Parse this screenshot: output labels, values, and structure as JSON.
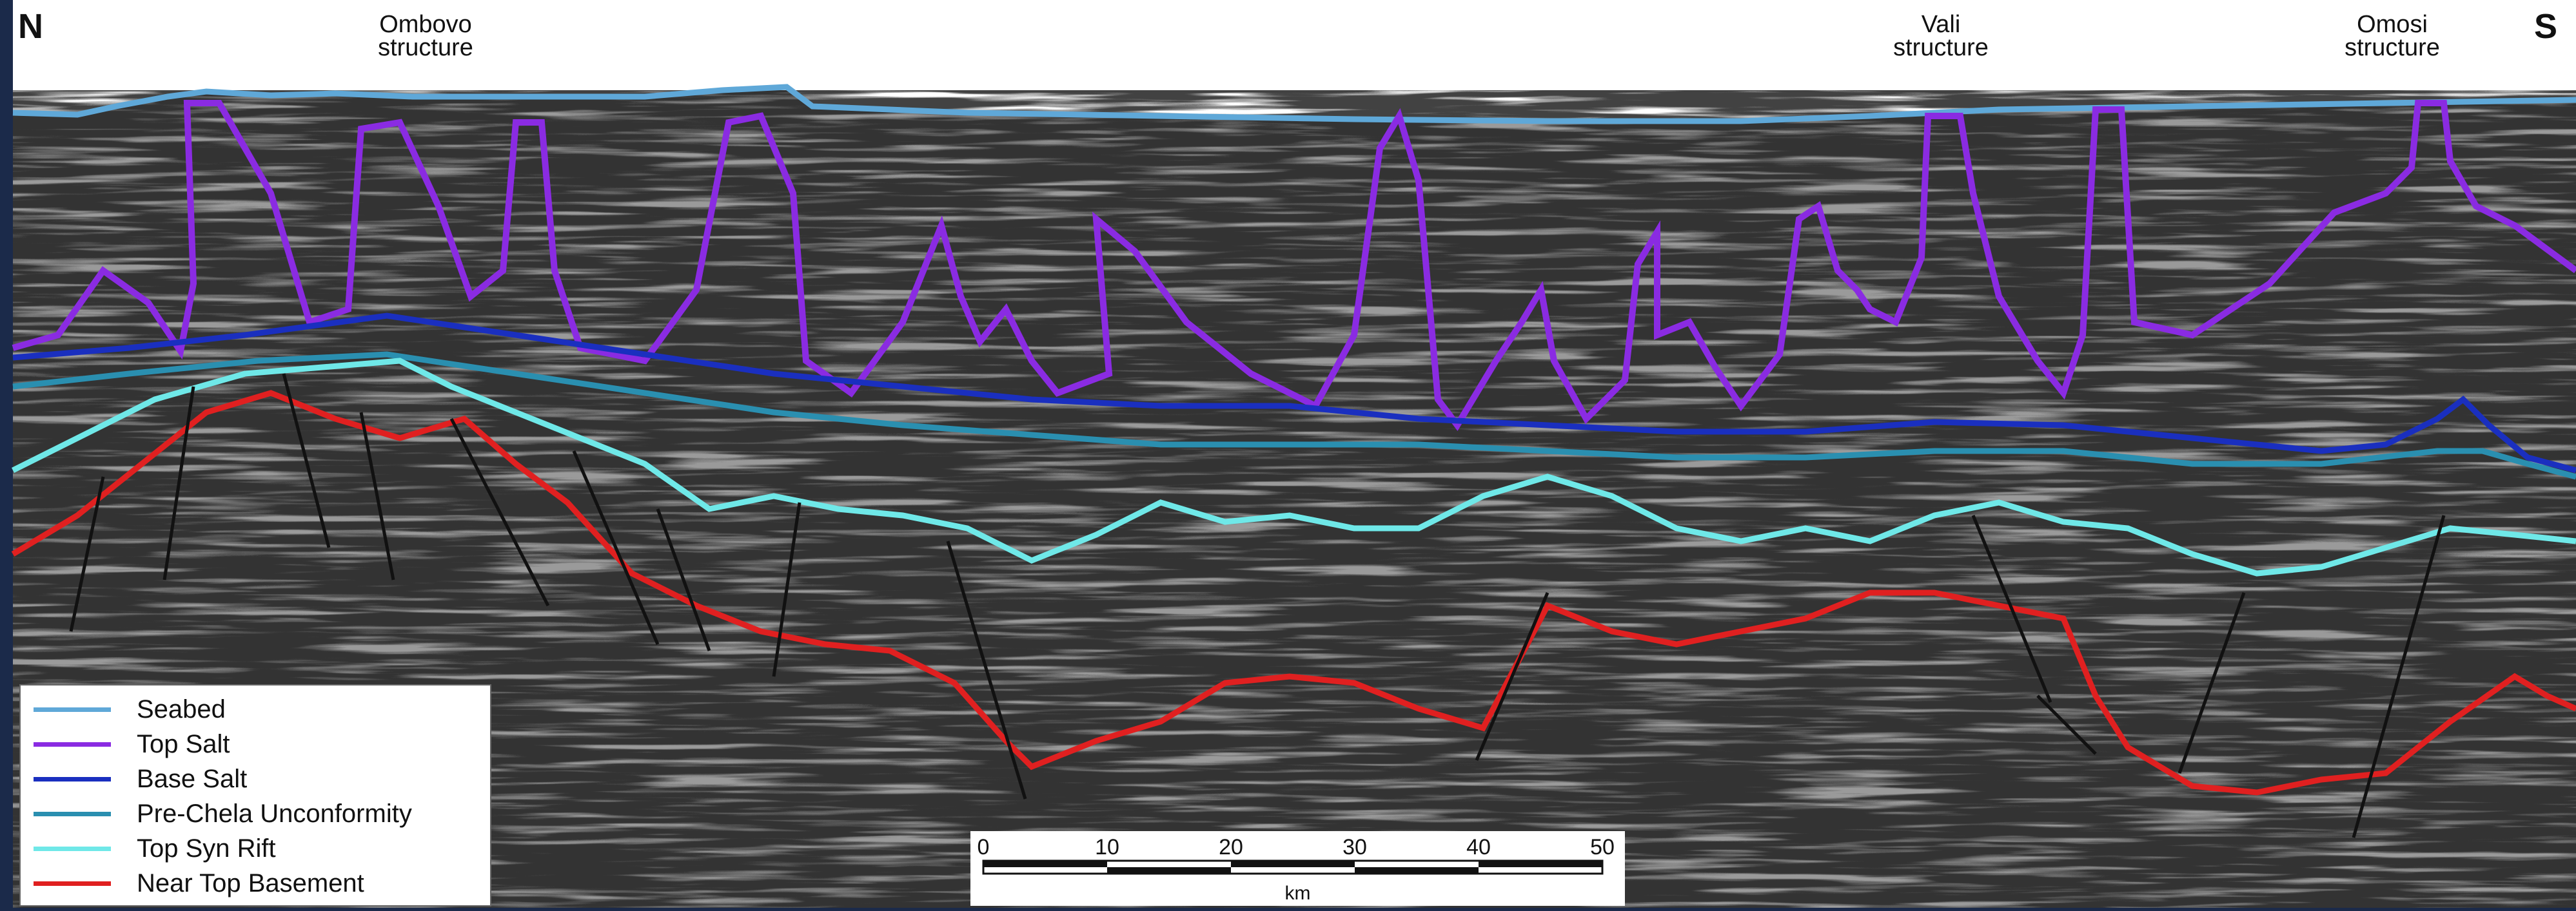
{
  "directions": {
    "north": "N",
    "south": "S"
  },
  "structures": [
    {
      "line1": "Ombovo",
      "line2": "structure"
    },
    {
      "line1": "Vali",
      "line2": "structure"
    },
    {
      "line1": "Omosi",
      "line2": "structure"
    }
  ],
  "legend": [
    {
      "label": "Seabed",
      "color": "#5fa8d8"
    },
    {
      "label": "Top Salt",
      "color": "#8a2be2"
    },
    {
      "label": "Base Salt",
      "color": "#1a2fbf"
    },
    {
      "label": "Pre-Chela Unconformity",
      "color": "#2a8fb0"
    },
    {
      "label": "Top Syn Rift",
      "color": "#6fe8e8"
    },
    {
      "label": "Near Top Basement",
      "color": "#e02020"
    }
  ],
  "scale_bar": {
    "ticks": [
      "0",
      "10",
      "20",
      "30",
      "40",
      "50"
    ],
    "unit": "km"
  }
}
